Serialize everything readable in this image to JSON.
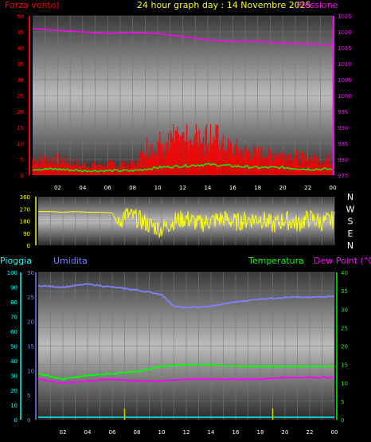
{
  "header": {
    "title": "24 hour graph day : 14 Novembre 2025",
    "left_label": "Forza vento)",
    "right_label": "Pressione"
  },
  "bottom_header": {
    "rain_label": "Pioggia",
    "humidity_label": "Umidita",
    "temperature_label": "Temperatura",
    "dewpoint_label": "Dew Point (°C)"
  },
  "colors": {
    "wind": "#ff0000",
    "gust": "#ff0000",
    "pressure": "#ff00ff",
    "direction": "#ffff00",
    "rain": "#00ffff",
    "humidity": "#8080ff",
    "temperature": "#00ff00",
    "dewpoint": "#ff00ff",
    "rain_rate": "#cccc00"
  },
  "chart_data": [
    {
      "type": "line",
      "panel": "wind-pressure",
      "title": "24 hour graph day : 14 Novembre 2025",
      "x_ticks": [
        "02",
        "04",
        "06",
        "08",
        "10",
        "12",
        "14",
        "16",
        "18",
        "20",
        "22",
        "00"
      ],
      "left_axis": {
        "label": "Forza vento)",
        "ticks": [
          0,
          5,
          10,
          15,
          20,
          25,
          30,
          35,
          40,
          45,
          50
        ],
        "ylim": [
          0,
          50
        ]
      },
      "right_axis": {
        "label": "Pressione",
        "ticks": [
          975,
          980,
          985,
          990,
          995,
          1000,
          1005,
          1010,
          1015,
          1020,
          1025
        ],
        "ylim": [
          975,
          1025
        ]
      },
      "series": [
        {
          "name": "Pressione",
          "axis": "right",
          "x": [
            0,
            2,
            4,
            6,
            8,
            10,
            12,
            14,
            16,
            18,
            20,
            22,
            24
          ],
          "values": [
            1021,
            1020.5,
            1020,
            1019.5,
            1019.8,
            1019.5,
            1018.5,
            1017.5,
            1017,
            1017,
            1016.5,
            1016.2,
            1016
          ]
        },
        {
          "name": "Forza vento)",
          "axis": "left",
          "x": [
            0,
            2,
            4,
            6,
            8,
            10,
            12,
            14,
            16,
            18,
            20,
            22,
            24
          ],
          "values": [
            3,
            3,
            2,
            2,
            2,
            4,
            5,
            6,
            5,
            4,
            4,
            3,
            3
          ]
        }
      ]
    },
    {
      "type": "scatter",
      "panel": "direction",
      "y_ticks": [
        0,
        90,
        180,
        270,
        360
      ],
      "compass_labels": [
        "N",
        "W",
        "S",
        "E",
        "N"
      ],
      "ylim": [
        0,
        360
      ],
      "series": [
        {
          "name": "direction",
          "x": [
            0,
            1,
            2,
            3,
            4,
            5,
            6,
            6.5,
            7,
            8,
            9,
            10,
            11,
            12,
            13,
            14,
            15,
            16,
            17,
            18,
            19,
            20,
            21,
            22,
            23,
            24
          ],
          "values": [
            250,
            250,
            245,
            250,
            245,
            245,
            240,
            150,
            230,
            200,
            150,
            120,
            180,
            200,
            160,
            180,
            200,
            170,
            190,
            200,
            150,
            190,
            160,
            200,
            170,
            190
          ]
        }
      ]
    },
    {
      "type": "line",
      "panel": "humidity-temperature",
      "x_ticks": [
        "02",
        "04",
        "06",
        "08",
        "10",
        "12",
        "14",
        "16",
        "18",
        "20",
        "22",
        "00"
      ],
      "rain_axis": {
        "label": "Pioggia",
        "ticks": [
          0,
          5,
          10,
          15,
          20,
          25,
          30
        ]
      },
      "humidity_axis": {
        "label": "Umidita",
        "ticks": [
          0,
          10,
          20,
          30,
          40,
          50,
          60,
          70,
          80,
          90,
          100
        ]
      },
      "temperature_axis": {
        "label": "Temperatura",
        "ticks": [
          0,
          5,
          10,
          15,
          20,
          25,
          30,
          35,
          40
        ],
        "ylim": [
          0,
          40
        ]
      },
      "series": [
        {
          "name": "Umidita",
          "axis": "humidity",
          "x": [
            0,
            2,
            4,
            6,
            8,
            10,
            11,
            12,
            14,
            16,
            18,
            20,
            22,
            24
          ],
          "values": [
            91,
            90,
            92,
            90,
            88,
            85,
            77,
            76,
            77,
            80,
            82,
            83,
            83,
            84
          ]
        },
        {
          "name": "Temperatura",
          "axis": "temperature",
          "x": [
            0,
            2,
            4,
            6,
            8,
            10,
            12,
            14,
            16,
            18,
            20,
            22,
            24
          ],
          "values": [
            12.5,
            11,
            12,
            12.5,
            13,
            14.5,
            15,
            15,
            14.5,
            14.5,
            14.5,
            14.5,
            14.5
          ]
        },
        {
          "name": "Dew Point (°C)",
          "axis": "temperature",
          "x": [
            0,
            2,
            4,
            6,
            8,
            10,
            12,
            14,
            16,
            18,
            20,
            22,
            24
          ],
          "values": [
            11,
            10,
            10.5,
            11,
            10.5,
            10.5,
            11,
            11,
            11,
            11,
            11.5,
            11.5,
            11.5
          ]
        },
        {
          "name": "Pioggia",
          "axis": "rain",
          "x": [
            0,
            24
          ],
          "values": [
            0.5,
            0.5
          ]
        }
      ]
    }
  ]
}
